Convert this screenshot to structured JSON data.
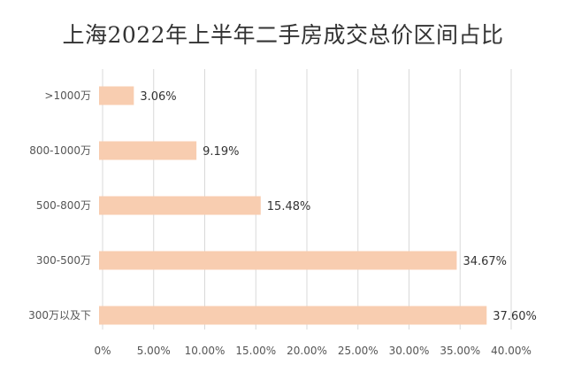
{
  "chart_data": {
    "type": "bar",
    "orientation": "horizontal",
    "title": "上海2022年上半年二手房成交总价区间占比",
    "categories": [
      ">1000万",
      "800-1000万",
      "500-800万",
      "300-500万",
      "300万以及下"
    ],
    "values": [
      3.06,
      9.19,
      15.48,
      34.67,
      37.6
    ],
    "data_labels": [
      "3.06%",
      "9.19%",
      "15.48%",
      "34.67%",
      "37.60%"
    ],
    "xlim": [
      0,
      40
    ],
    "x_ticks": [
      0,
      5,
      10,
      15,
      20,
      25,
      30,
      35,
      40
    ],
    "x_tick_labels": [
      "0%",
      "5.00%",
      "10.00%",
      "15.00%",
      "20.00%",
      "25.00%",
      "30.00%",
      "35.00%",
      "40.00%"
    ],
    "xlabel": "",
    "ylabel": "",
    "grid": true,
    "colors": {
      "bar": "#F8CDB0",
      "grid": "#D9D9D9",
      "text": "#555555"
    }
  }
}
